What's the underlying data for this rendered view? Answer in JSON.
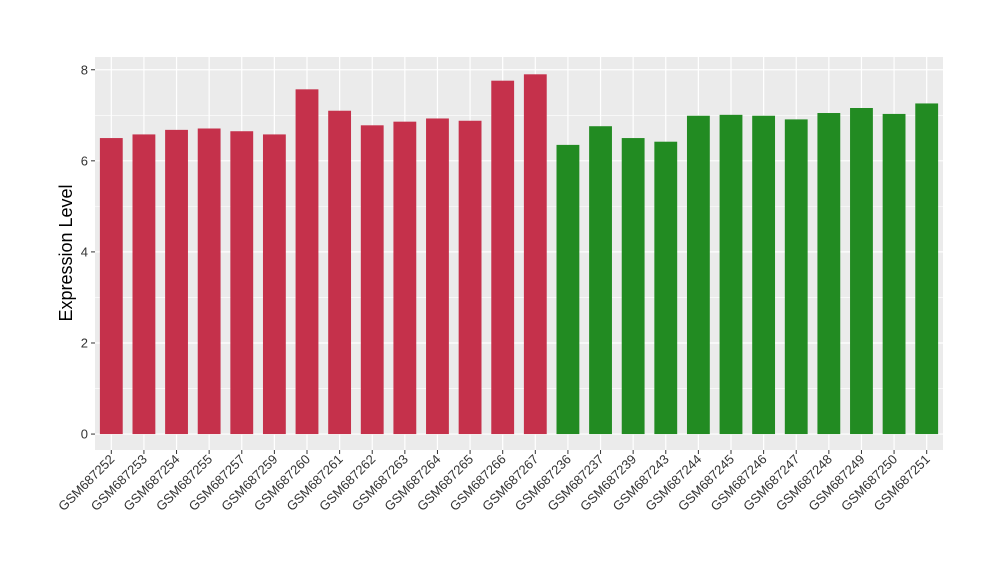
{
  "chart_data": {
    "type": "bar",
    "title": "",
    "xlabel": "",
    "ylabel": "Expression Level",
    "ylim": [
      -0.35,
      8.28
    ],
    "yticks": [
      0,
      2,
      4,
      6,
      8
    ],
    "grid": true,
    "legend": "none",
    "colors": {
      "panel": "#ebebeb",
      "grid": "#ffffff",
      "group_a": "#c5314b",
      "group_b": "#228b22"
    },
    "categories": [
      "GSM687252",
      "GSM687253",
      "GSM687254",
      "GSM687255",
      "GSM687257",
      "GSM687259",
      "GSM687260",
      "GSM687261",
      "GSM687262",
      "GSM687263",
      "GSM687264",
      "GSM687265",
      "GSM687266",
      "GSM687267",
      "GSM687236",
      "GSM687237",
      "GSM687239",
      "GSM687243",
      "GSM687244",
      "GSM687245",
      "GSM687246",
      "GSM687247",
      "GSM687248",
      "GSM687249",
      "GSM687250",
      "GSM687251"
    ],
    "values": [
      6.5,
      6.58,
      6.68,
      6.71,
      6.65,
      6.58,
      7.57,
      7.1,
      6.78,
      6.86,
      6.93,
      6.88,
      7.76,
      7.9,
      6.35,
      6.76,
      6.5,
      6.42,
      6.99,
      7.01,
      6.99,
      6.91,
      7.05,
      7.16,
      7.03,
      7.26
    ],
    "bar_colors": [
      "#c5314b",
      "#c5314b",
      "#c5314b",
      "#c5314b",
      "#c5314b",
      "#c5314b",
      "#c5314b",
      "#c5314b",
      "#c5314b",
      "#c5314b",
      "#c5314b",
      "#c5314b",
      "#c5314b",
      "#c5314b",
      "#228b22",
      "#228b22",
      "#228b22",
      "#228b22",
      "#228b22",
      "#228b22",
      "#228b22",
      "#228b22",
      "#228b22",
      "#228b22",
      "#228b22",
      "#228b22"
    ]
  }
}
